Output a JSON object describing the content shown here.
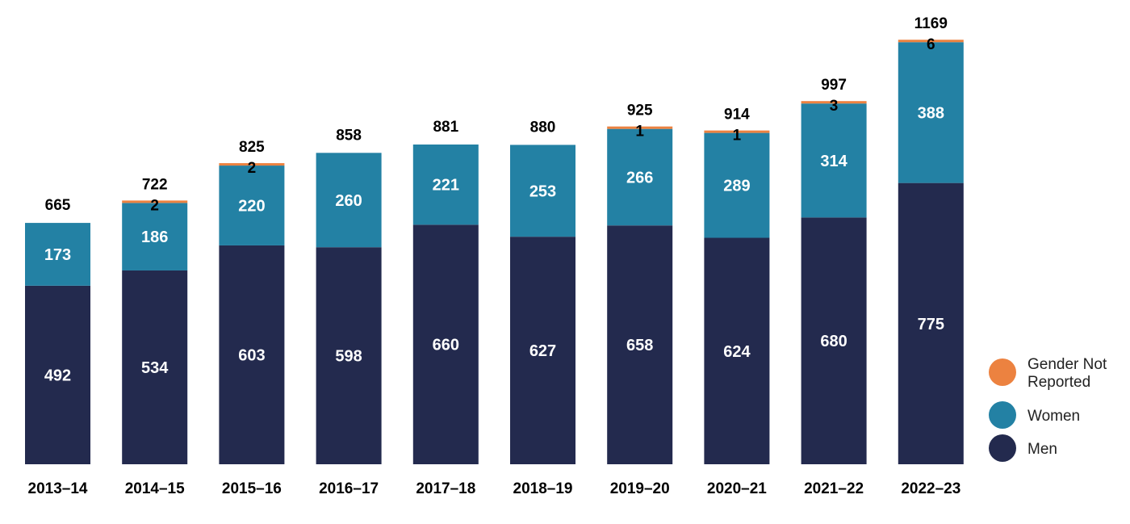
{
  "chart_data": {
    "type": "bar",
    "stacked": true,
    "categories": [
      "2013–14",
      "2014–15",
      "2015–16",
      "2016–17",
      "2017–18",
      "2018–19",
      "2019–20",
      "2020–21",
      "2021–22",
      "2022–23"
    ],
    "series": [
      {
        "name": "Men",
        "color": "#232a4e",
        "values": [
          492,
          534,
          603,
          598,
          660,
          627,
          658,
          624,
          680,
          775
        ]
      },
      {
        "name": "Women",
        "color": "#2381a4",
        "values": [
          173,
          186,
          220,
          260,
          221,
          253,
          266,
          289,
          314,
          388
        ]
      },
      {
        "name": "Gender Not Reported",
        "color": "#ec8240",
        "values": [
          0,
          2,
          2,
          0,
          0,
          0,
          1,
          1,
          3,
          6
        ]
      }
    ],
    "totals": [
      665,
      722,
      825,
      858,
      881,
      880,
      925,
      914,
      997,
      1169
    ],
    "title": "",
    "xlabel": "",
    "ylabel": "",
    "ylim": [
      0,
      1169
    ],
    "grid": false,
    "legend": {
      "placement": "bottom-right",
      "entries": [
        {
          "label": "Gender Not Reported",
          "lines": [
            "Gender Not",
            "Reported"
          ],
          "color": "#ec8240"
        },
        {
          "label": "Women",
          "lines": [
            "Women"
          ],
          "color": "#2381a4"
        },
        {
          "label": "Men",
          "lines": [
            "Men"
          ],
          "color": "#232a4e"
        }
      ]
    }
  }
}
